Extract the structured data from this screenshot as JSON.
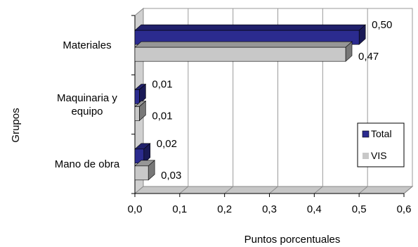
{
  "chart_data": {
    "type": "bar",
    "orientation": "horizontal",
    "three_d": true,
    "categories": [
      "Materiales",
      "Maquinaria y equipo",
      "Mano de obra"
    ],
    "category_lines": [
      [
        "Materiales"
      ],
      [
        "Maquinaria y",
        "equipo"
      ],
      [
        "Mano de obra"
      ]
    ],
    "series": [
      {
        "name": "Total",
        "values": [
          0.5,
          0.01,
          0.02
        ],
        "labels": [
          "0,50",
          "0,01",
          "0,02"
        ],
        "color": "#2b2b8f"
      },
      {
        "name": "VIS",
        "values": [
          0.47,
          0.01,
          0.03
        ],
        "labels": [
          "0,47",
          "0,01",
          "0,03"
        ],
        "color": "#c8c8c8"
      }
    ],
    "xlim": [
      0,
      0.6
    ],
    "x_ticks": [
      0,
      0.1,
      0.2,
      0.3,
      0.4,
      0.5,
      0.6
    ],
    "x_tick_labels": [
      "0,0",
      "0,1",
      "0,2",
      "0,3",
      "0,4",
      "0,5",
      "0,6"
    ],
    "xlabel": "Puntos porcentuales",
    "ylabel": "Grupos",
    "grid": true,
    "legend_position": "right"
  }
}
